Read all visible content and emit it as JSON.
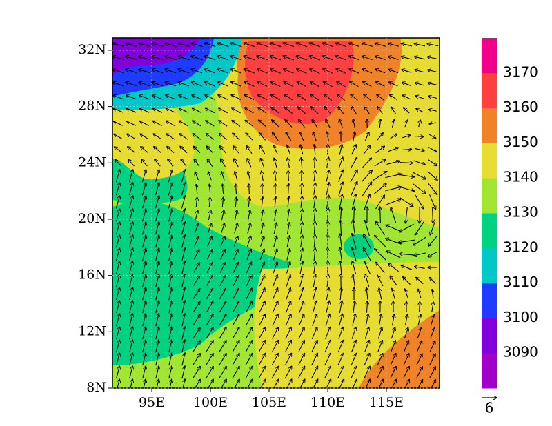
{
  "map": {
    "x_ticks": [
      {
        "value": 95,
        "label": "95E"
      },
      {
        "value": 100,
        "label": "100E"
      },
      {
        "value": 105,
        "label": "105E"
      },
      {
        "value": 110,
        "label": "110E"
      },
      {
        "value": 115,
        "label": "115E"
      }
    ],
    "y_ticks": [
      {
        "value": 8,
        "label": "8N"
      },
      {
        "value": 12,
        "label": "12N"
      },
      {
        "value": 16,
        "label": "16N"
      },
      {
        "value": 20,
        "label": "20N"
      },
      {
        "value": 24,
        "label": "24N"
      },
      {
        "value": 28,
        "label": "28N"
      },
      {
        "value": 32,
        "label": "32N"
      }
    ],
    "colorbar": {
      "levels": [
        3090,
        3100,
        3110,
        3120,
        3130,
        3140,
        3150,
        3160,
        3170
      ],
      "colors": [
        "#a000c8",
        "#8200dc",
        "#1e3cff",
        "#00c8c8",
        "#00d282",
        "#a0e632",
        "#e6dc32",
        "#f08228",
        "#ff4040",
        "#f0008c"
      ]
    },
    "reference_vector": {
      "label": "6"
    }
  }
}
